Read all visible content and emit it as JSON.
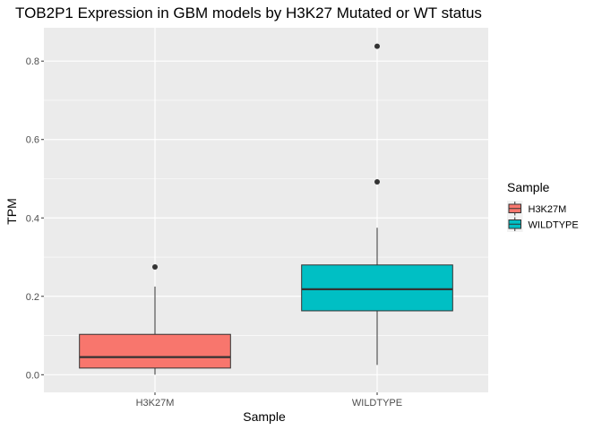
{
  "chart_data": {
    "type": "boxplot",
    "title": "TOB2P1 Expression in GBM models by H3K27 Mutated or WT status",
    "xlabel": "Sample",
    "ylabel": "TPM",
    "categories": [
      "H3K27M",
      "WILDTYPE"
    ],
    "ylim": [
      -0.045,
      0.885
    ],
    "yticks": [
      0.0,
      0.2,
      0.4,
      0.6,
      0.8
    ],
    "ytick_labels": [
      "0.0",
      "0.2",
      "0.4",
      "0.6",
      "0.8"
    ],
    "grid": true,
    "legend": {
      "title": "Sample",
      "position": "right",
      "entries": [
        "H3K27M",
        "WILDTYPE"
      ]
    },
    "series": [
      {
        "name": "H3K27M",
        "color": "#F8766D",
        "whisker_low": 0.0,
        "q1": 0.017,
        "median": 0.045,
        "q3": 0.103,
        "whisker_high": 0.225,
        "outliers": [
          0.275
        ]
      },
      {
        "name": "WILDTYPE",
        "color": "#00BFC4",
        "whisker_low": 0.025,
        "q1": 0.163,
        "median": 0.218,
        "q3": 0.28,
        "whisker_high": 0.375,
        "outliers": [
          0.492,
          0.838
        ]
      }
    ],
    "colors": {
      "panel_background": "#EBEBEB",
      "grid_line": "#FFFFFF",
      "box_outline": "#333333",
      "outlier": "#333333"
    }
  }
}
